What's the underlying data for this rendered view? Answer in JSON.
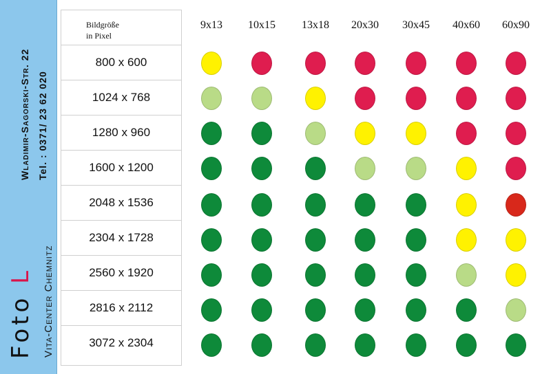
{
  "sidebar": {
    "brand_main": "Foto",
    "brand_letter": "L",
    "location": "Vita-Center Chemnitz",
    "address": "Wladimir-Sagorski-Str. 22",
    "phone": "Tel. : 0371/ 23 62 020"
  },
  "table": {
    "header_line1": "Bildgröße",
    "header_line2": "in Pixel",
    "print_sizes": [
      "9x13",
      "10x15",
      "13x18",
      "20x30",
      "30x45",
      "40x60",
      "60x90"
    ],
    "resolutions": [
      "800 x 600",
      "1024 x 768",
      "1280 x 960",
      "1600 x 1200",
      "2048 x 1536",
      "2304 x 1728",
      "2560 x 1920",
      "2816 x 2112",
      "3072 x 2304"
    ],
    "palette": {
      "good": "#0e8a3a",
      "ok": "#b9db87",
      "fair": "#fff200",
      "poor": "#df1d4f",
      "bad": "#d8281b"
    },
    "ratings": [
      [
        "fair",
        "poor",
        "poor",
        "poor",
        "poor",
        "poor",
        "poor"
      ],
      [
        "ok",
        "ok",
        "fair",
        "poor",
        "poor",
        "poor",
        "poor"
      ],
      [
        "good",
        "good",
        "ok",
        "fair",
        "fair",
        "poor",
        "poor"
      ],
      [
        "good",
        "good",
        "good",
        "ok",
        "ok",
        "fair",
        "poor"
      ],
      [
        "good",
        "good",
        "good",
        "good",
        "good",
        "fair",
        "bad"
      ],
      [
        "good",
        "good",
        "good",
        "good",
        "good",
        "fair",
        "fair"
      ],
      [
        "good",
        "good",
        "good",
        "good",
        "good",
        "ok",
        "fair"
      ],
      [
        "good",
        "good",
        "good",
        "good",
        "good",
        "good",
        "ok"
      ],
      [
        "good",
        "good",
        "good",
        "good",
        "good",
        "good",
        "good"
      ]
    ]
  }
}
